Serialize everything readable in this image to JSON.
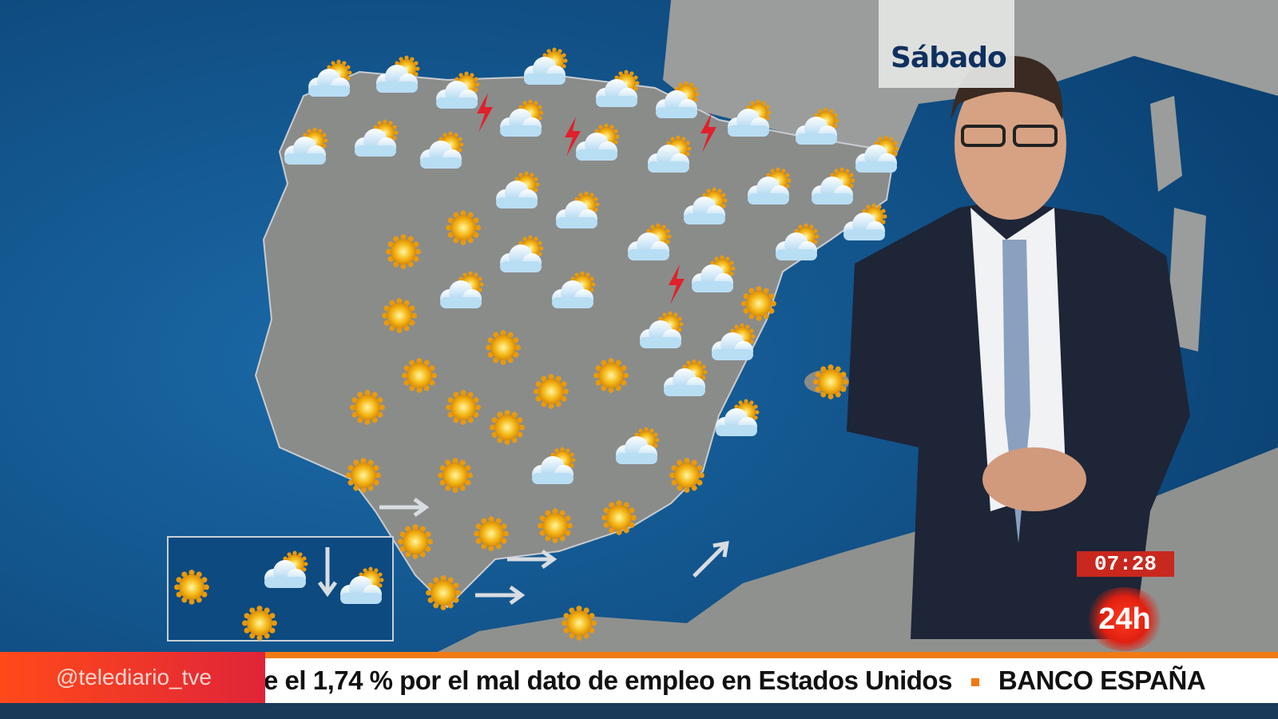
{
  "forecast": {
    "day_label": "Sábado",
    "icon_types": [
      "sun-icon",
      "sun-cloud-icon",
      "storm-icon",
      "wind-arrow-icon"
    ]
  },
  "broadcast": {
    "clock": "07:28",
    "channel_logo": "24h",
    "social_handle": "@telediario_tve",
    "ticker_headline": "e el 1,74 % por el mal dato de empleo en Estados Unidos",
    "ticker_next": "BANCO ESPAÑA"
  },
  "colors": {
    "sea": "#0d4f86",
    "land": "#8a8c8a",
    "ticker_accent": "#f07a14",
    "brand_red": "#e02010",
    "title_blue": "#10305e"
  }
}
